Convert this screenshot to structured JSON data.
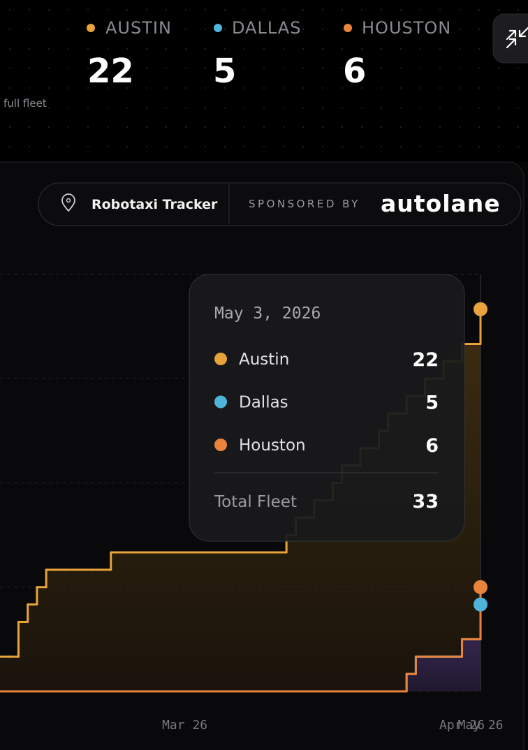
{
  "header": {
    "note": "full fleet"
  },
  "sponsor": {
    "title": "Robotaxi Tracker",
    "label": "SPONSORED BY",
    "brand": "autolane"
  },
  "chart_data": {
    "type": "line",
    "step": true,
    "grid": true,
    "categories": [
      null,
      null,
      null,
      null,
      null,
      null,
      null,
      null,
      null,
      null,
      null,
      null,
      null,
      null,
      null,
      null,
      null,
      null,
      null,
      null,
      "Mar 26",
      null,
      null,
      null,
      null,
      null,
      null,
      null,
      null,
      null,
      null,
      null,
      null,
      null,
      null,
      null,
      null,
      null,
      null,
      null,
      null,
      null,
      null,
      null,
      null,
      null,
      null,
      null,
      null,
      null,
      "Apr 26",
      null,
      "May 26"
    ],
    "series": [
      {
        "name": "Austin",
        "color": "#e8a33c",
        "values": [
          2,
          2,
          4,
          5,
          6,
          7,
          7,
          7,
          7,
          7,
          7,
          7,
          8,
          8,
          8,
          8,
          8,
          8,
          8,
          8,
          8,
          8,
          8,
          8,
          8,
          8,
          8,
          8,
          8,
          8,
          8,
          9,
          10,
          10,
          11,
          11,
          12,
          13,
          13,
          14,
          14,
          15,
          16,
          16,
          17,
          17,
          18,
          18,
          19,
          19,
          20,
          20,
          22
        ]
      },
      {
        "name": "Dallas",
        "color": "#4fb4da",
        "values": [
          0,
          0,
          0,
          0,
          0,
          0,
          0,
          0,
          0,
          0,
          0,
          0,
          0,
          0,
          0,
          0,
          0,
          0,
          0,
          0,
          0,
          0,
          0,
          0,
          0,
          0,
          0,
          0,
          0,
          0,
          0,
          0,
          0,
          0,
          0,
          0,
          0,
          0,
          0,
          0,
          0,
          0,
          0,
          0,
          1,
          2,
          2,
          2,
          2,
          2,
          3,
          3,
          5
        ]
      },
      {
        "name": "Houston",
        "color": "#ea843c",
        "values": [
          0,
          0,
          0,
          0,
          0,
          0,
          0,
          0,
          0,
          0,
          0,
          0,
          0,
          0,
          0,
          0,
          0,
          0,
          0,
          0,
          0,
          0,
          0,
          0,
          0,
          0,
          0,
          0,
          0,
          0,
          0,
          0,
          0,
          0,
          0,
          0,
          0,
          0,
          0,
          0,
          0,
          0,
          0,
          0,
          1,
          2,
          2,
          2,
          2,
          2,
          3,
          3,
          6
        ]
      }
    ],
    "ylim": [
      0,
      24
    ],
    "yticks": [
      0,
      6,
      12,
      18,
      24
    ]
  },
  "tooltip": {
    "date": "May 3, 2026",
    "total_label": "Total Fleet",
    "total": 33
  }
}
